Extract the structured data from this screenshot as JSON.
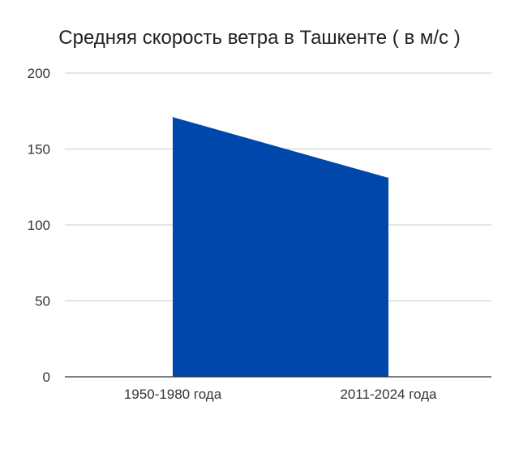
{
  "chart_data": {
    "type": "area",
    "title": "Средняя скорость ветра в Ташкенте ( в м/с )",
    "categories": [
      "1950-1980 года",
      "2011-2024 года"
    ],
    "series": [
      {
        "values": [
          171,
          131
        ]
      }
    ],
    "ylim": [
      0,
      200
    ],
    "yticks": [
      "0",
      "50",
      "100",
      "150",
      "200"
    ],
    "xlabel": "",
    "ylabel": "",
    "grid": true,
    "legend": "none",
    "colors": {
      "area": "#0047ab",
      "grid": "#cccccc",
      "axis": "#333333"
    }
  }
}
